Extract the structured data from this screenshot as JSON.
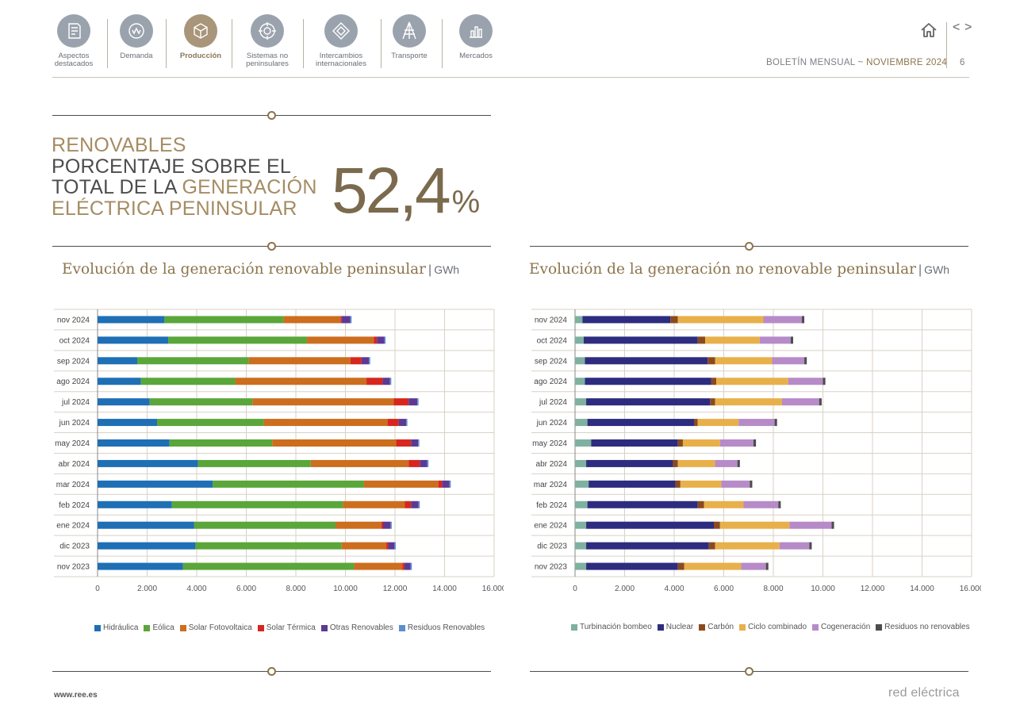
{
  "nav": {
    "items": [
      {
        "label_1": "Aspectos",
        "label_2": "destacados",
        "icon": "document-icon"
      },
      {
        "label_1": "Demanda",
        "label_2": "",
        "icon": "energy-meter-icon"
      },
      {
        "label_1": "Producción",
        "label_2": "",
        "icon": "cube-icon"
      },
      {
        "label_1": "Sistemas no",
        "label_2": "peninsulares",
        "icon": "island-icon"
      },
      {
        "label_1": "Intercambios",
        "label_2": "internacionales",
        "icon": "exchange-icon"
      },
      {
        "label_1": "Transporte",
        "label_2": "",
        "icon": "transmission-tower-icon"
      },
      {
        "label_1": "Mercados",
        "label_2": "",
        "icon": "market-chart-icon"
      }
    ],
    "active": "Producción"
  },
  "header": {
    "bulletin": "BOLETÍN MENSUAL",
    "separator": "~",
    "month": "NOVIEMBRE 2024",
    "page": "6"
  },
  "kpi": {
    "line1": "RENOVABLES",
    "line2": "PORCENTAJE SOBRE EL",
    "line3a": "TOTAL DE LA ",
    "line3b": "GENERACIÓN",
    "line4": "ELÉCTRICA PENINSULAR",
    "value": "52,4",
    "unit": "%"
  },
  "colors": {
    "accent": "#8c744d",
    "nav_icon": "#9aa3ad",
    "nav_active": "#a8957a"
  },
  "chart_data": [
    {
      "type": "bar",
      "orientation": "horizontal",
      "stacked": true,
      "title": "Evolución de la generación renovable peninsular",
      "unit": "GWh",
      "categories": [
        "nov 2024",
        "oct 2024",
        "sep 2024",
        "ago 2024",
        "jul 2024",
        "jun 2024",
        "may 2024",
        "abr 2024",
        "mar 2024",
        "feb 2024",
        "ene 2024",
        "dic 2023",
        "nov 2023"
      ],
      "xlim": [
        0,
        16000
      ],
      "xticks": [
        "0",
        "2.000",
        "4.000",
        "6.000",
        "8.000",
        "10.000",
        "12.000",
        "14.000",
        "16.000"
      ],
      "grid": true,
      "legend_position": "bottom",
      "series": [
        {
          "name": "Hidráulica",
          "color": "#1f6fb5",
          "values": [
            2700,
            2850,
            1600,
            1750,
            2100,
            2400,
            2900,
            4050,
            4650,
            3000,
            3900,
            3950,
            3450
          ]
        },
        {
          "name": "Eólica",
          "color": "#5aa63a",
          "values": [
            4800,
            5600,
            4500,
            3800,
            4150,
            4300,
            4150,
            4550,
            6100,
            6900,
            5700,
            5900,
            6900
          ]
        },
        {
          "name": "Solar Fotovoltaica",
          "color": "#cc6e1e",
          "values": [
            2300,
            2700,
            4100,
            5300,
            5700,
            5000,
            5000,
            3950,
            3000,
            2500,
            1850,
            1800,
            1950
          ]
        },
        {
          "name": "Solar Térmica",
          "color": "#d7261e",
          "values": [
            50,
            120,
            450,
            650,
            600,
            450,
            600,
            450,
            150,
            250,
            70,
            80,
            80
          ]
        },
        {
          "name": "Otras Renovables",
          "color": "#5c3a93",
          "values": [
            350,
            300,
            300,
            300,
            350,
            300,
            280,
            300,
            300,
            300,
            300,
            250,
            250
          ]
        },
        {
          "name": "Residuos Renovables",
          "color": "#5b8fd0",
          "values": [
            50,
            50,
            50,
            50,
            50,
            50,
            50,
            50,
            50,
            50,
            50,
            50,
            50
          ]
        }
      ]
    },
    {
      "type": "bar",
      "orientation": "horizontal",
      "stacked": true,
      "title": "Evolución de la generación no renovable peninsular",
      "unit": "GWh",
      "categories": [
        "nov 2024",
        "oct 2024",
        "sep 2024",
        "ago 2024",
        "jul 2024",
        "jun 2024",
        "may 2024",
        "abr 2024",
        "mar 2024",
        "feb 2024",
        "ene 2024",
        "dic 2023",
        "nov 2023"
      ],
      "xlim": [
        0,
        16000
      ],
      "xticks": [
        "0",
        "2.000",
        "4.000",
        "6.000",
        "8.000",
        "10.000",
        "12.000",
        "14.000",
        "16.000"
      ],
      "grid": true,
      "legend_position": "bottom",
      "series": [
        {
          "name": "Turbinación bombeo",
          "color": "#7fb0a0",
          "values": [
            300,
            350,
            400,
            400,
            450,
            500,
            650,
            450,
            550,
            500,
            450,
            450,
            450
          ]
        },
        {
          "name": "Nuclear",
          "color": "#2e2c7f",
          "values": [
            3550,
            4600,
            4950,
            5100,
            5000,
            4300,
            3500,
            3500,
            3500,
            4450,
            5150,
            4950,
            3700
          ]
        },
        {
          "name": "Carbón",
          "color": "#8b4a1e",
          "values": [
            300,
            300,
            300,
            200,
            200,
            150,
            200,
            200,
            200,
            250,
            250,
            250,
            250
          ]
        },
        {
          "name": "Ciclo combinado",
          "color": "#e8b04a",
          "values": [
            3450,
            2200,
            2300,
            2900,
            2700,
            1650,
            1500,
            1500,
            1650,
            1600,
            2800,
            2600,
            2300
          ]
        },
        {
          "name": "Cogeneración",
          "color": "#b68bc8",
          "values": [
            1550,
            1250,
            1300,
            1400,
            1500,
            1450,
            1350,
            900,
            1150,
            1400,
            1700,
            1200,
            1000
          ]
        },
        {
          "name": "Residuos no renovables",
          "color": "#4d4d4d",
          "values": [
            100,
            100,
            100,
            100,
            100,
            100,
            100,
            100,
            100,
            100,
            100,
            100,
            100
          ]
        }
      ]
    }
  ],
  "footer": {
    "url": "www.ree.es",
    "logo": "red eléctrica"
  }
}
